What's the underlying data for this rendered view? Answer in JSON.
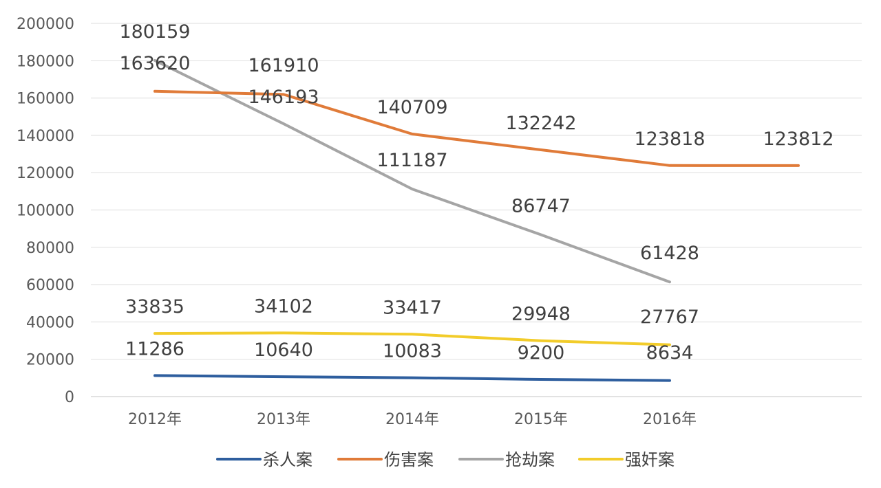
{
  "chart_data": {
    "type": "line",
    "categories": [
      "2012年",
      "2013年",
      "2014年",
      "2015年",
      "2016年",
      ""
    ],
    "ylim": [
      0,
      200000
    ],
    "yticks": [
      0,
      20000,
      40000,
      60000,
      80000,
      100000,
      120000,
      140000,
      160000,
      180000,
      200000
    ],
    "grid": true,
    "legend_position": "bottom",
    "series": [
      {
        "name": "杀人案",
        "color": "#2E5E9E",
        "values": [
          11286,
          10640,
          10083,
          9200,
          8634,
          null
        ]
      },
      {
        "name": "伤害案",
        "color": "#E07B39",
        "values": [
          163620,
          161910,
          140709,
          132242,
          123818,
          123812
        ]
      },
      {
        "name": "抢劫案",
        "color": "#A5A5A5",
        "values": [
          180159,
          146193,
          111187,
          86747,
          61428,
          null
        ]
      },
      {
        "name": "强奸案",
        "color": "#F2CC2A",
        "values": [
          33835,
          34102,
          33417,
          29948,
          27767,
          null
        ]
      }
    ]
  }
}
